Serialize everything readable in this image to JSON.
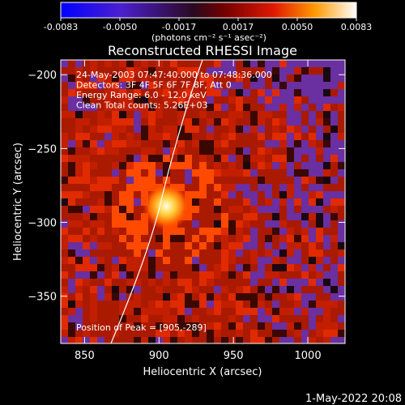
{
  "colorbar": {
    "ticks": [
      "-0.0083",
      "-0.0050",
      "-0.0017",
      "0.0017",
      "0.0050",
      "0.0083"
    ],
    "units": "(photons cm⁻² s⁻¹ asec⁻²)"
  },
  "chart_data": {
    "type": "heatmap",
    "title": "Reconstructed RHESSI Image",
    "xlabel": "Heliocentric X (arcsec)",
    "ylabel": "Heliocentric Y (arcsec)",
    "xlim": [
      834,
      1025
    ],
    "ylim": [
      -382,
      -190
    ],
    "xticks": [
      850,
      900,
      950,
      1000
    ],
    "yticks": [
      -200,
      -250,
      -300,
      -350
    ],
    "xtick_labels": [
      "850",
      "900",
      "950",
      "1000"
    ],
    "ytick_labels": [
      "−200",
      "−250",
      "−300",
      "−350"
    ],
    "colorbar_range": [
      -0.0083,
      0.0083
    ],
    "annotations": [
      "24-May-2003 07:47:40.000 to 07:48:36.000",
      "Detectors: 3F 4F 5F 6F 7F 8F, Att 0",
      "Energy Range: 6.0 - 12.0 keV",
      "Clean     Total counts: 5.26E+03"
    ],
    "peak_label": "Position of Peak = [905,-289]",
    "peak": [
      905,
      -289
    ],
    "colors": {
      "negative": "#6a2fa0",
      "positive_low": "#aa1a00",
      "positive_high": "#ff8a00",
      "peak": "#ffffc0"
    }
  },
  "footer": {
    "timestamp": "1-May-2022 20:08"
  }
}
